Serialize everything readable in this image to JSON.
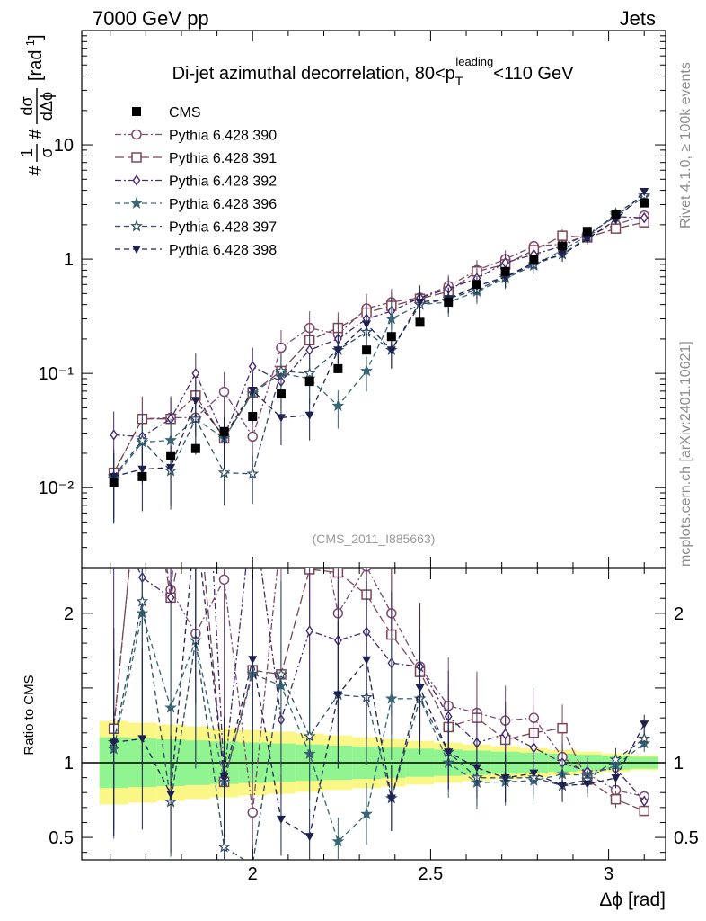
{
  "header": {
    "energy_label": "7000 GeV pp",
    "process_label": "Jets"
  },
  "side_labels": {
    "rivet": "Rivet 4.1.0, ≥ 100k events",
    "mcplots": "mcplots.cern.ch [arXiv:2401.10621]"
  },
  "chart_data": {
    "type": "scatter",
    "title": "Di-jet azimuthal decorrelation, 80<p_T^leading<110 GeV",
    "title_parts": {
      "prefix": "Di-jet azimuthal decorrelation, 80<p",
      "sub": "T",
      "sup": "leading",
      "suffix": "<110 GeV"
    },
    "analysis_id": "(CMS_2011_I885663)",
    "xlabel": "Δϕ [rad]",
    "ylabel": "#frac{1}{σ}#frac{dσ}{dΔϕ} [rad⁻¹]",
    "ylabel_parts": {
      "frac1_num": "1",
      "frac1_den": "σ",
      "frac2_num": "dσ",
      "frac2_den": "dΔϕ",
      "unit": "[rad",
      "unit_sup": "-1",
      "unit_end": "]"
    },
    "ratio_ylabel": "Ratio to CMS",
    "xlim": [
      1.52,
      3.16
    ],
    "ylim": [
      0.002,
      100
    ],
    "ratio_ylim": [
      0.35,
      2.3
    ],
    "yscale": "log",
    "x_ticks": [
      2,
      2.5,
      3
    ],
    "x_tick_labels": [
      "2",
      "2.5",
      "3"
    ],
    "y_ticks": [
      0.01,
      0.1,
      1,
      10
    ],
    "y_tick_labels": [
      "10⁻²",
      "10⁻¹",
      "1",
      "10"
    ],
    "ratio_y_ticks": [
      0.5,
      1,
      2
    ],
    "ratio_y_tick_labels": [
      "0.5",
      "1",
      "2"
    ],
    "x": [
      1.61,
      1.69,
      1.77,
      1.84,
      1.92,
      2.0,
      2.08,
      2.16,
      2.24,
      2.32,
      2.39,
      2.47,
      2.55,
      2.63,
      2.71,
      2.79,
      2.87,
      2.94,
      3.02,
      3.1
    ],
    "reference": {
      "name": "CMS",
      "values": [
        0.011,
        0.0125,
        0.019,
        0.022,
        0.031,
        0.042,
        0.066,
        0.085,
        0.11,
        0.16,
        0.21,
        0.28,
        0.42,
        0.6,
        0.78,
        1.0,
        1.3,
        1.75,
        2.45,
        3.1
      ]
    },
    "series": [
      {
        "name": "Pythia 6.428 390",
        "marker": "circle-open",
        "color": "#7e4b70",
        "dash": "7,3,2,3",
        "values": [
          0.0135,
          0.04,
          0.041,
          0.041,
          0.069,
          0.028,
          0.168,
          0.25,
          0.22,
          0.37,
          0.42,
          0.46,
          0.58,
          0.8,
          1.0,
          1.3,
          1.35,
          1.62,
          2.0,
          2.4
        ]
      },
      {
        "name": "Pythia 6.428 391",
        "marker": "square-open",
        "color": "#7b4654",
        "dash": "10,4",
        "values": [
          0.0135,
          0.04,
          0.04,
          0.064,
          0.027,
          0.068,
          0.105,
          0.195,
          0.25,
          0.34,
          0.39,
          0.45,
          0.52,
          0.78,
          0.9,
          1.2,
          1.6,
          1.55,
          1.85,
          2.1
        ]
      },
      {
        "name": "Pythia 6.428 392",
        "marker": "diamond-open",
        "color": "#452a6e",
        "dash": "7,3,2,3",
        "values": [
          0.029,
          0.028,
          0.04,
          0.1,
          0.028,
          0.115,
          0.085,
          0.16,
          0.2,
          0.3,
          0.35,
          0.46,
          0.55,
          0.68,
          0.93,
          1.1,
          1.3,
          1.65,
          2.35,
          2.3
        ]
      },
      {
        "name": "Pythia 6.428 396",
        "marker": "star-filled",
        "color": "#3a6674",
        "dash": "6,4",
        "values": [
          0.012,
          0.025,
          0.026,
          0.04,
          0.027,
          0.067,
          0.1,
          0.09,
          0.052,
          0.105,
          0.3,
          0.4,
          0.42,
          0.52,
          0.68,
          0.88,
          1.2,
          1.6,
          2.4,
          3.5
        ]
      },
      {
        "name": "Pythia 6.428 397",
        "marker": "star-open",
        "color": "#2e4c62",
        "dash": "6,4",
        "values": [
          0.0125,
          0.026,
          0.014,
          0.04,
          0.0135,
          0.0132,
          0.105,
          0.1,
          0.16,
          0.23,
          0.16,
          0.4,
          0.45,
          0.54,
          0.7,
          0.9,
          1.1,
          1.55,
          2.5,
          3.6
        ]
      },
      {
        "name": "Pythia 6.428 398",
        "marker": "triangle-down-filled",
        "color": "#1e2050",
        "dash": "6,4",
        "values": [
          0.0125,
          0.0145,
          0.015,
          0.058,
          0.028,
          0.071,
          0.041,
          0.043,
          0.16,
          0.27,
          0.16,
          0.42,
          0.45,
          0.58,
          0.7,
          0.93,
          1.1,
          1.5,
          2.2,
          3.9
        ]
      }
    ]
  }
}
